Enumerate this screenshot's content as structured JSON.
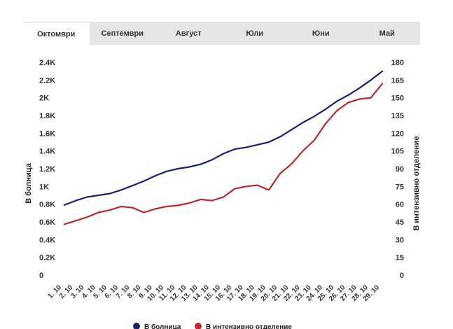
{
  "tabs": [
    {
      "label": "Октомври",
      "active": true
    },
    {
      "label": "Септември",
      "active": false
    },
    {
      "label": "Август",
      "active": false
    },
    {
      "label": "Юли",
      "active": false
    },
    {
      "label": "Юни",
      "active": false
    },
    {
      "label": "Май",
      "active": false
    }
  ],
  "chart_data": {
    "type": "line",
    "x": [
      "1. 10",
      "2. 10",
      "3. 10",
      "4. 10",
      "5. 10",
      "6. 10",
      "7. 10",
      "8. 10",
      "9. 10",
      "10. 10",
      "11. 10",
      "12. 10",
      "13. 10",
      "14. 10",
      "15. 10",
      "16. 10",
      "17. 10",
      "18. 10",
      "19. 10",
      "20. 10",
      "21. 10",
      "22. 10",
      "23. 10",
      "24. 10",
      "25. 10",
      "26. 10",
      "27. 10",
      "28. 10",
      "29. 10"
    ],
    "y_left": {
      "label": "В болница",
      "ylim": [
        0,
        2400
      ],
      "ticks": [
        0,
        200,
        400,
        600,
        800,
        1000,
        1200,
        1400,
        1600,
        1800,
        2000,
        2200,
        2400
      ],
      "tick_labels": [
        "0",
        "0.2K",
        "0.4K",
        "0.6K",
        "0.8K",
        "1K",
        "1.2K",
        "1.4K",
        "1.6K",
        "1.8K",
        "2K",
        "2.2K",
        "2.4K"
      ]
    },
    "y_right": {
      "label": "В интензивно отделение",
      "ylim": [
        0,
        180
      ],
      "ticks": [
        0,
        15,
        30,
        45,
        60,
        75,
        90,
        105,
        120,
        135,
        150,
        165,
        180
      ],
      "tick_labels": [
        "0",
        "15",
        "30",
        "45",
        "60",
        "75",
        "90",
        "105",
        "120",
        "135",
        "150",
        "165",
        "180"
      ]
    },
    "series": [
      {
        "name": "В болница",
        "axis": "left",
        "color": "#1a1f6e",
        "values": [
          790,
          840,
          880,
          900,
          920,
          960,
          1010,
          1060,
          1120,
          1170,
          1200,
          1220,
          1250,
          1300,
          1370,
          1420,
          1440,
          1470,
          1500,
          1560,
          1640,
          1720,
          1790,
          1870,
          1960,
          2030,
          2110,
          2200,
          2300
        ]
      },
      {
        "name": "В интензивно отделение",
        "axis": "right",
        "color": "#c0272d",
        "values": [
          43,
          46,
          49,
          53,
          55,
          58,
          57,
          53,
          56,
          58,
          59,
          61,
          64,
          63,
          66,
          73,
          75,
          76,
          72,
          86,
          94,
          105,
          114,
          128,
          139,
          146,
          149,
          150,
          162
        ]
      }
    ],
    "legend_position": "bottom-center"
  }
}
